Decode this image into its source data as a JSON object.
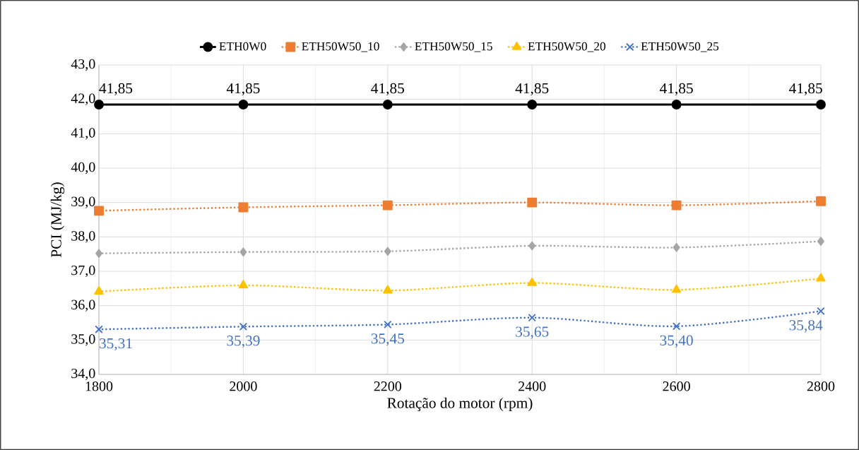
{
  "chart_data": {
    "type": "line",
    "xlabel": "Rotação do motor (rpm)",
    "ylabel": "PCI (MJ/kg)",
    "x": [
      1800,
      2000,
      2200,
      2400,
      2600,
      2800
    ],
    "xlim": [
      1800,
      2800
    ],
    "xticks": [
      1800,
      2000,
      2200,
      2400,
      2600,
      2800
    ],
    "ylim": [
      34,
      43
    ],
    "yticks": [
      {
        "value": 34,
        "label": "34,0"
      },
      {
        "value": 35,
        "label": "35,0"
      },
      {
        "value": 36,
        "label": "36,0"
      },
      {
        "value": 37,
        "label": "37,0"
      },
      {
        "value": 38,
        "label": "38,0"
      },
      {
        "value": 39,
        "label": "39,0"
      },
      {
        "value": 40,
        "label": "40,0"
      },
      {
        "value": 41,
        "label": "41,0"
      },
      {
        "value": 42,
        "label": "42,0"
      },
      {
        "value": 43,
        "label": "43,0"
      }
    ],
    "grid": true,
    "legend": "top",
    "series": [
      {
        "name": "ETH0W0",
        "color": "#000000",
        "marker": "circle",
        "line_style": "solid",
        "values": [
          41.85,
          41.85,
          41.85,
          41.85,
          41.85,
          41.85
        ],
        "value_labels": [
          "41,85",
          "41,85",
          "41,85",
          "41,85",
          "41,85",
          "41,85"
        ]
      },
      {
        "name": "ETH50W50_10",
        "color": "#ed7d31",
        "marker": "square",
        "line_style": "dotted",
        "values": [
          38.76,
          38.86,
          38.92,
          39.0,
          38.92,
          39.04
        ]
      },
      {
        "name": "ETH50W50_15",
        "color": "#a5a5a5",
        "marker": "diamond",
        "line_style": "dotted",
        "values": [
          37.52,
          37.56,
          37.58,
          37.74,
          37.69,
          37.87
        ]
      },
      {
        "name": "ETH50W50_20",
        "color": "#ffc000",
        "marker": "triangle",
        "line_style": "dotted",
        "values": [
          36.41,
          36.59,
          36.44,
          36.66,
          36.46,
          36.79
        ]
      },
      {
        "name": "ETH50W50_25",
        "color": "#4472c4",
        "marker": "cross",
        "line_style": "dotted",
        "values": [
          35.31,
          35.39,
          35.45,
          35.65,
          35.4,
          35.84
        ],
        "value_labels": [
          "35,31",
          "35,39",
          "35,45",
          "35,65",
          "35,40",
          "35,84"
        ]
      }
    ]
  }
}
